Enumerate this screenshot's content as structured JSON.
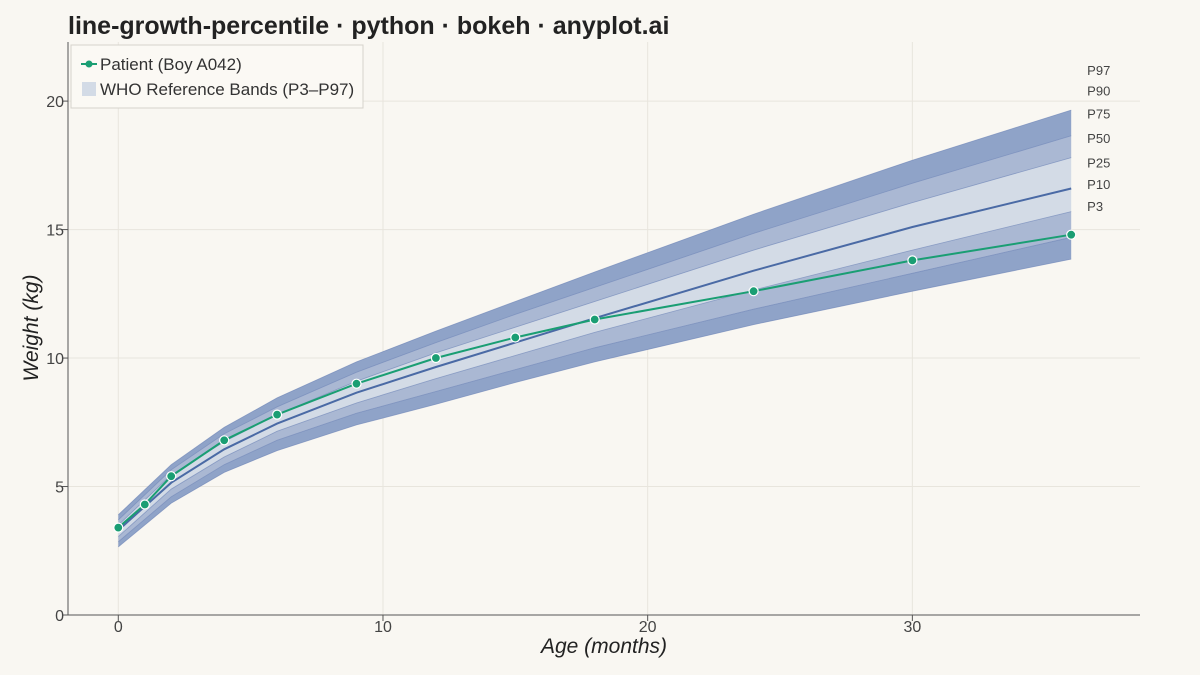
{
  "chart_data": {
    "type": "line",
    "title": "line-growth-percentile · python · bokeh · anyplot.ai",
    "xlabel": "Age (months)",
    "ylabel": "Weight (kg)",
    "xlim": [
      -1.9,
      38.6
    ],
    "ylim": [
      0,
      22.3
    ],
    "xticks": [
      0,
      10,
      20,
      30
    ],
    "yticks": [
      0,
      5,
      10,
      15,
      20
    ],
    "grid": true,
    "legend_position": "top-left",
    "legend": [
      {
        "label": "Patient (Boy A042)",
        "kind": "line-marker"
      },
      {
        "label": "WHO Reference Bands (P3–P97)",
        "kind": "patch"
      }
    ],
    "percentile_x": [
      0,
      2,
      4,
      6,
      9,
      12,
      15,
      18,
      24,
      30,
      36
    ],
    "percentiles": [
      {
        "name": "P3",
        "values": [
          2.65,
          4.35,
          5.55,
          6.4,
          7.4,
          8.2,
          9.05,
          9.85,
          11.3,
          12.6,
          13.85
        ]
      },
      {
        "name": "P10",
        "values": [
          2.85,
          4.6,
          5.85,
          6.8,
          7.85,
          8.7,
          9.55,
          10.4,
          11.9,
          13.3,
          14.7
        ]
      },
      {
        "name": "P25",
        "values": [
          3.05,
          4.9,
          6.15,
          7.15,
          8.25,
          9.2,
          10.1,
          11.0,
          12.65,
          14.2,
          15.7
        ]
      },
      {
        "name": "P50",
        "values": [
          3.3,
          5.15,
          6.45,
          7.45,
          8.65,
          9.65,
          10.6,
          11.55,
          13.4,
          15.1,
          16.6
        ]
      },
      {
        "name": "P75",
        "values": [
          3.5,
          5.45,
          6.75,
          7.8,
          9.1,
          10.2,
          11.2,
          12.2,
          14.2,
          16.05,
          17.8
        ]
      },
      {
        "name": "P90",
        "values": [
          3.7,
          5.65,
          7.05,
          8.1,
          9.45,
          10.6,
          11.7,
          12.75,
          14.85,
          16.8,
          18.65
        ]
      },
      {
        "name": "P97",
        "values": [
          3.9,
          5.85,
          7.3,
          8.45,
          9.85,
          11.05,
          12.2,
          13.35,
          15.6,
          17.7,
          19.65
        ]
      }
    ],
    "percentile_labels": [
      {
        "name": "P97",
        "value": 21.2
      },
      {
        "name": "P90",
        "value": 20.4
      },
      {
        "name": "P75",
        "value": 19.5
      },
      {
        "name": "P50",
        "value": 18.55
      },
      {
        "name": "P25",
        "value": 17.6
      },
      {
        "name": "P10",
        "value": 16.75
      },
      {
        "name": "P3",
        "value": 15.9
      }
    ],
    "series": [
      {
        "name": "Patient (Boy A042)",
        "x": [
          0,
          1,
          2,
          4,
          6,
          9,
          12,
          15,
          18,
          24,
          30,
          36
        ],
        "y": [
          3.4,
          4.3,
          5.4,
          6.8,
          7.8,
          9.0,
          10.0,
          10.8,
          11.5,
          12.6,
          13.8,
          14.8
        ]
      }
    ],
    "colors": {
      "patient": "#1a9e73",
      "outer_band": "#8fa3c8",
      "middle_band": "#aab8d3",
      "inner_band": "#d3dbe6",
      "median_line": "#4a6aa5",
      "band_edge": "#6f86b8",
      "grid": "#e8e5dd",
      "axis": "#555555"
    }
  }
}
